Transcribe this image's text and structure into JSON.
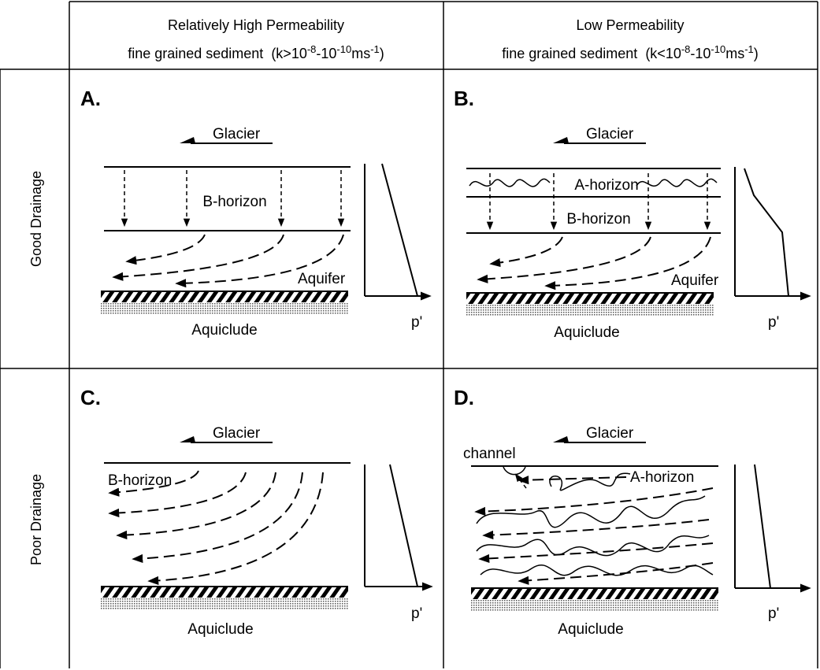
{
  "columns": [
    {
      "line1": "Relatively High Permeability",
      "line2": [
        "fine grained sediment  (k>10",
        "-8",
        "-10",
        "-10",
        "ms",
        "-1",
        ")"
      ]
    },
    {
      "line1": "Low Permeability",
      "line2": [
        "fine grained sediment  (k<10",
        "-8",
        "-10",
        "-10",
        "ms",
        "-1",
        ")"
      ]
    }
  ],
  "rows": [
    "Good Drainage",
    "Poor Drainage"
  ],
  "panels": [
    {
      "letter": "A.",
      "glacier": "Glacier",
      "labels": [
        "B-horizon",
        "Aquifer"
      ],
      "base": "Aquiclude",
      "axis": "p'"
    },
    {
      "letter": "B.",
      "glacier": "Glacier",
      "labels": [
        "A-horizon",
        "B-horizon",
        "Aquifer"
      ],
      "base": "Aquiclude",
      "axis": "p'"
    },
    {
      "letter": "C.",
      "glacier": "Glacier",
      "labels": [
        "B-horizon"
      ],
      "base": "Aquiclude",
      "axis": "p'"
    },
    {
      "letter": "D.",
      "glacier": "Glacier",
      "labels": [
        "channel",
        "A-horizon"
      ],
      "base": "Aquiclude",
      "axis": "p'"
    }
  ]
}
